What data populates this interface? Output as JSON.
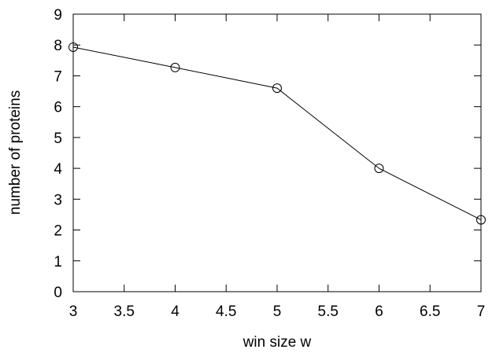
{
  "chart_data": {
    "type": "line",
    "title": "",
    "xlabel": "win size w",
    "ylabel": "number of proteins",
    "xlim": [
      3,
      7
    ],
    "ylim": [
      0,
      9
    ],
    "x_ticks": [
      "3",
      "3.5",
      "4",
      "4.5",
      "5",
      "5.5",
      "6",
      "6.5",
      "7"
    ],
    "y_ticks": [
      "0",
      "1",
      "2",
      "3",
      "4",
      "5",
      "6",
      "7",
      "8",
      "9"
    ],
    "grid": false,
    "legend": "none",
    "marker": "open-circle",
    "series": [
      {
        "x": [
          3,
          4,
          5,
          6,
          7
        ],
        "values": [
          7.93,
          7.27,
          6.6,
          4.0,
          2.33
        ]
      }
    ]
  }
}
